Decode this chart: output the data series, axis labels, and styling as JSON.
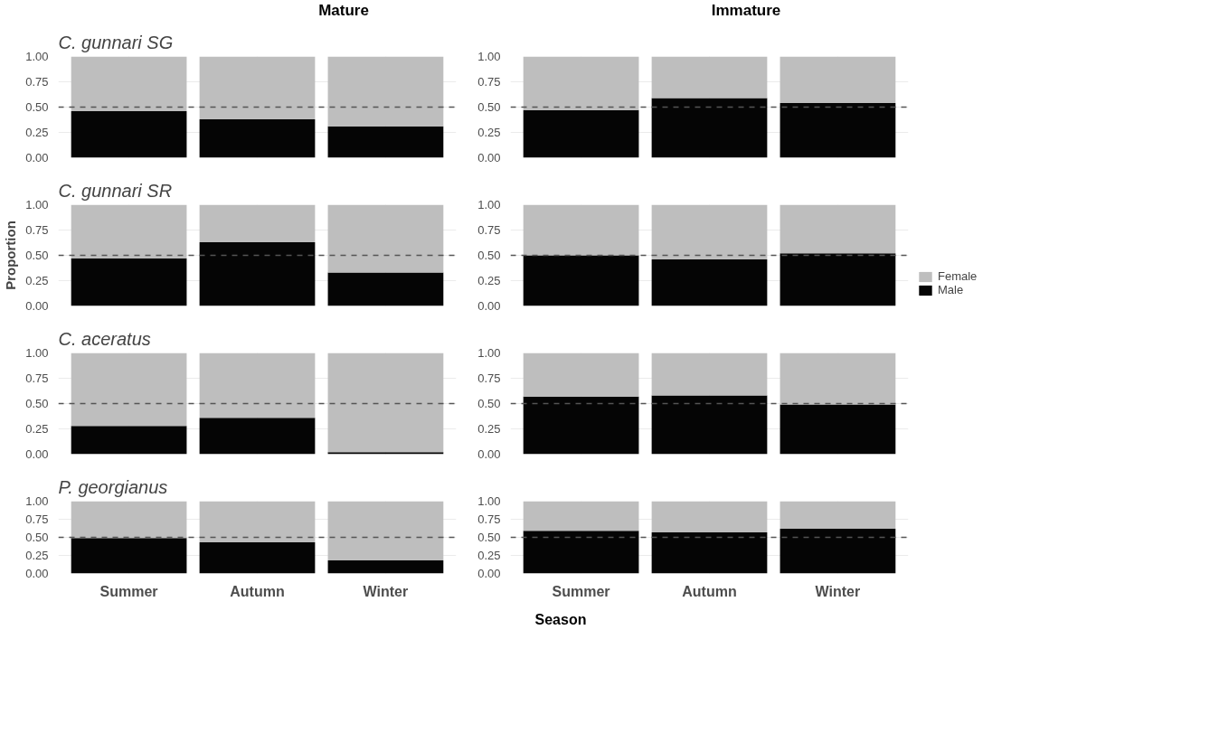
{
  "chart_data": [
    {
      "type": "bar",
      "title": "C. gunnari SG",
      "annotations": [
        "Mature"
      ],
      "categories": [
        null,
        null,
        null
      ],
      "stacked": true,
      "series": [
        {
          "color": "#050505",
          "values": [
            0.46,
            0.38,
            0.31
          ]
        },
        {
          "color": "#bebebe",
          "values": [
            0.54,
            0.62,
            0.69
          ]
        }
      ],
      "ylim": [
        0,
        1
      ],
      "yticks": [
        {
          "value": 0,
          "label": "0.00"
        },
        {
          "value": 0.25,
          "label": "0.25"
        },
        {
          "value": 0.5,
          "label": "0.50"
        },
        {
          "value": 0.75,
          "label": "0.75"
        },
        {
          "value": 1,
          "label": "1.00"
        }
      ],
      "ref_lines": [
        {
          "axis": "y",
          "value": 0.5,
          "color": "#555555",
          "line_style": "dashed"
        }
      ],
      "grid": true,
      "tick_labels": "y"
    },
    {
      "type": "bar",
      "annotations": [
        "Immature"
      ],
      "categories": [
        null,
        null,
        null
      ],
      "stacked": true,
      "series": [
        {
          "color": "#050505",
          "values": [
            0.47,
            0.59,
            0.54
          ]
        },
        {
          "color": "#bebebe",
          "values": [
            0.53,
            0.41,
            0.46
          ]
        }
      ],
      "ylim": [
        0,
        1
      ],
      "yticks": [
        {
          "value": 0,
          "label": "0.00"
        },
        {
          "value": 0.25,
          "label": "0.25"
        },
        {
          "value": 0.5,
          "label": "0.50"
        },
        {
          "value": 0.75,
          "label": "0.75"
        },
        {
          "value": 1,
          "label": "1.00"
        }
      ],
      "ref_lines": [
        {
          "axis": "y",
          "value": 0.5,
          "color": "#555555",
          "line_style": "dashed"
        }
      ],
      "grid": true,
      "tick_labels": "y"
    },
    {
      "type": "bar",
      "title": "C. gunnari SR",
      "ylabel": "Proportion",
      "categories": [
        null,
        null,
        null
      ],
      "stacked": true,
      "series": [
        {
          "color": "#050505",
          "values": [
            0.47,
            0.63,
            0.33
          ]
        },
        {
          "color": "#bebebe",
          "values": [
            0.53,
            0.37,
            0.67
          ]
        }
      ],
      "ylim": [
        0,
        1
      ],
      "yticks": [
        {
          "value": 0,
          "label": "0.00"
        },
        {
          "value": 0.25,
          "label": "0.25"
        },
        {
          "value": 0.5,
          "label": "0.50"
        },
        {
          "value": 0.75,
          "label": "0.75"
        },
        {
          "value": 1,
          "label": "1.00"
        }
      ],
      "ref_lines": [
        {
          "axis": "y",
          "value": 0.5,
          "color": "#555555",
          "line_style": "dashed"
        }
      ],
      "grid": true,
      "tick_labels": "y"
    },
    {
      "type": "bar",
      "categories": [
        null,
        null,
        null
      ],
      "stacked": true,
      "series": [
        {
          "name": "Male",
          "color": "#050505",
          "values": [
            0.5,
            0.46,
            0.52
          ]
        },
        {
          "name": "Female",
          "color": "#bebebe",
          "values": [
            0.5,
            0.54,
            0.48
          ]
        }
      ],
      "ylim": [
        0,
        1
      ],
      "yticks": [
        {
          "value": 0,
          "label": "0.00"
        },
        {
          "value": 0.25,
          "label": "0.25"
        },
        {
          "value": 0.5,
          "label": "0.50"
        },
        {
          "value": 0.75,
          "label": "0.75"
        },
        {
          "value": 1,
          "label": "1.00"
        }
      ],
      "ref_lines": [
        {
          "axis": "y",
          "value": 0.5,
          "color": "#555555",
          "line_style": "dashed"
        }
      ],
      "grid": true,
      "tick_labels": "y",
      "legend": "right"
    },
    {
      "type": "bar",
      "title": "C. aceratus",
      "categories": [
        null,
        null,
        null
      ],
      "stacked": true,
      "series": [
        {
          "color": "#050505",
          "values": [
            0.28,
            0.36,
            0.02
          ]
        },
        {
          "color": "#bebebe",
          "values": [
            0.72,
            0.64,
            0.98
          ]
        }
      ],
      "ylim": [
        0,
        1
      ],
      "yticks": [
        {
          "value": 0,
          "label": "0.00"
        },
        {
          "value": 0.25,
          "label": "0.25"
        },
        {
          "value": 0.5,
          "label": "0.50"
        },
        {
          "value": 0.75,
          "label": "0.75"
        },
        {
          "value": 1,
          "label": "1.00"
        }
      ],
      "ref_lines": [
        {
          "axis": "y",
          "value": 0.5,
          "color": "#555555",
          "line_style": "dashed"
        }
      ],
      "grid": true,
      "tick_labels": "y"
    },
    {
      "type": "bar",
      "categories": [
        null,
        null,
        null
      ],
      "stacked": true,
      "series": [
        {
          "color": "#050505",
          "values": [
            0.57,
            0.58,
            0.49
          ]
        },
        {
          "color": "#bebebe",
          "values": [
            0.43,
            0.42,
            0.51
          ]
        }
      ],
      "ylim": [
        0,
        1
      ],
      "yticks": [
        {
          "value": 0,
          "label": "0.00"
        },
        {
          "value": 0.25,
          "label": "0.25"
        },
        {
          "value": 0.5,
          "label": "0.50"
        },
        {
          "value": 0.75,
          "label": "0.75"
        },
        {
          "value": 1,
          "label": "1.00"
        }
      ],
      "ref_lines": [
        {
          "axis": "y",
          "value": 0.5,
          "color": "#555555",
          "line_style": "dashed"
        }
      ],
      "grid": true,
      "tick_labels": "y"
    },
    {
      "type": "bar",
      "title": "P. georgianus",
      "xlabel": "Season",
      "categories": [
        "Summer",
        "Autumn",
        "Winter"
      ],
      "stacked": true,
      "series": [
        {
          "color": "#050505",
          "values": [
            0.49,
            0.43,
            0.18
          ]
        },
        {
          "color": "#bebebe",
          "values": [
            0.51,
            0.57,
            0.82
          ]
        }
      ],
      "ylim": [
        0,
        1
      ],
      "yticks": [
        {
          "value": 0,
          "label": "0.00"
        },
        {
          "value": 0.25,
          "label": "0.25"
        },
        {
          "value": 0.5,
          "label": "0.50"
        },
        {
          "value": 0.75,
          "label": "0.75"
        },
        {
          "value": 1,
          "label": "1.00"
        }
      ],
      "ref_lines": [
        {
          "axis": "y",
          "value": 0.5,
          "color": "#555555",
          "line_style": "dashed"
        }
      ],
      "grid": true
    },
    {
      "type": "bar",
      "categories": [
        "Summer",
        "Autumn",
        "Winter"
      ],
      "stacked": true,
      "series": [
        {
          "color": "#050505",
          "values": [
            0.59,
            0.57,
            0.62
          ]
        },
        {
          "color": "#bebebe",
          "values": [
            0.41,
            0.43,
            0.38
          ]
        }
      ],
      "ylim": [
        0,
        1
      ],
      "yticks": [
        {
          "value": 0,
          "label": "0.00"
        },
        {
          "value": 0.25,
          "label": "0.25"
        },
        {
          "value": 0.5,
          "label": "0.50"
        },
        {
          "value": 0.75,
          "label": "0.75"
        },
        {
          "value": 1,
          "label": "1.00"
        }
      ],
      "ref_lines": [
        {
          "axis": "y",
          "value": 0.5,
          "color": "#555555",
          "line_style": "dashed"
        }
      ],
      "grid": true
    }
  ]
}
